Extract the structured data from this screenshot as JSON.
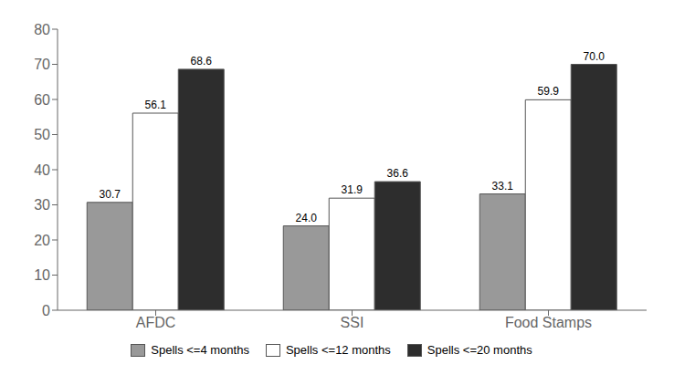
{
  "chart_data": {
    "type": "bar",
    "categories": [
      "AFDC",
      "SSI",
      "Food Stamps"
    ],
    "series": [
      {
        "name": "Spells <=4 months",
        "values": [
          30.7,
          24.0,
          33.1
        ],
        "value_labels": [
          "30.7",
          "24.0",
          "33.1"
        ],
        "color": "#999999"
      },
      {
        "name": "Spells <=12 months",
        "values": [
          56.1,
          31.9,
          59.9
        ],
        "value_labels": [
          "56.1",
          "31.9",
          "59.9"
        ],
        "color": "#ffffff"
      },
      {
        "name": "Spells <=20 months",
        "values": [
          68.6,
          36.6,
          70.0
        ],
        "value_labels": [
          "68.6",
          "36.6",
          "70.0"
        ],
        "color": "#2d2d2d"
      }
    ],
    "ylim": [
      0,
      80
    ],
    "yticks": [
      0,
      10,
      20,
      30,
      40,
      50,
      60,
      70,
      80
    ],
    "grid": false,
    "legend": "bottom",
    "data_labels": true
  }
}
